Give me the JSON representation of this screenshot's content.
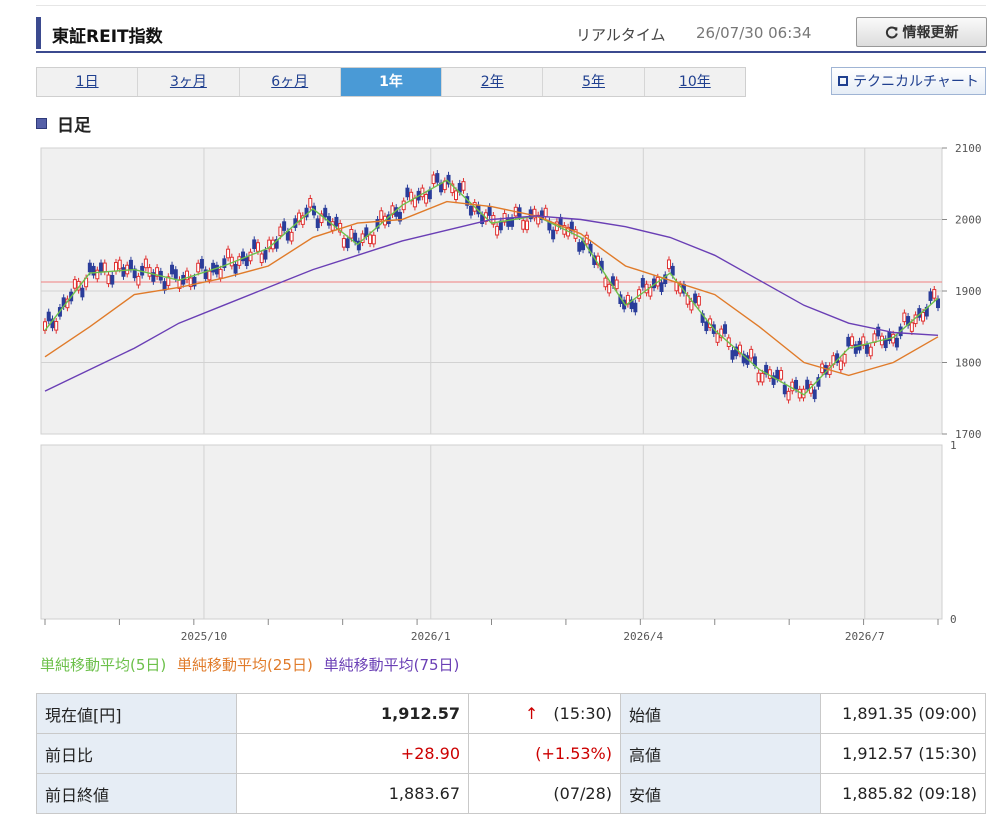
{
  "header": {
    "title": "東証REIT指数",
    "realtime_label": "リアルタイム",
    "timestamp": "26/07/30 06:34",
    "refresh_label": "情報更新"
  },
  "tabs": [
    {
      "label": "1日",
      "active": false
    },
    {
      "label": "3ヶ月",
      "active": false
    },
    {
      "label": "6ヶ月",
      "active": false
    },
    {
      "label": "1年",
      "active": true
    },
    {
      "label": "2年",
      "active": false
    },
    {
      "label": "5年",
      "active": false
    },
    {
      "label": "10年",
      "active": false
    }
  ],
  "technical_chart_label": "テクニカルチャート",
  "section_label": "日足",
  "legend": [
    {
      "label": "単純移動平均(5日)",
      "color": "#6cc04a"
    },
    {
      "label": "単純移動平均(25日)",
      "color": "#e07b2a"
    },
    {
      "label": "単純移動平均(75日)",
      "color": "#6a3fb5"
    }
  ],
  "chart_data": {
    "type": "line",
    "x_ticks": [
      "2025/10",
      "2026/1",
      "2026/4",
      "2026/7"
    ],
    "y_ticks": [
      "2100",
      "2000",
      "1900",
      "1800",
      "1700"
    ],
    "ylim": [
      1700,
      2100
    ],
    "volume_ticks": [
      "1",
      "0"
    ],
    "reference_line": 1912.57,
    "series": [
      {
        "name": "単純移動平均(5日)",
        "color": "#6cc04a",
        "x": [
          0,
          0.05,
          0.1,
          0.15,
          0.2,
          0.25,
          0.3,
          0.35,
          0.4,
          0.45,
          0.5,
          0.55,
          0.6,
          0.65,
          0.7,
          0.75,
          0.8,
          0.85,
          0.9,
          0.95,
          1.0
        ],
        "y": [
          1845,
          1925,
          1930,
          1915,
          1935,
          1960,
          2015,
          1965,
          2020,
          2055,
          1995,
          2005,
          1975,
          1880,
          1925,
          1845,
          1790,
          1755,
          1820,
          1835,
          1890
        ]
      },
      {
        "name": "単純移動平均(25日)",
        "color": "#e07b2a",
        "x": [
          0,
          0.05,
          0.1,
          0.15,
          0.2,
          0.25,
          0.3,
          0.35,
          0.4,
          0.45,
          0.5,
          0.55,
          0.6,
          0.65,
          0.7,
          0.75,
          0.8,
          0.85,
          0.9,
          0.95,
          1.0
        ],
        "y": [
          1808,
          1850,
          1895,
          1905,
          1918,
          1935,
          1975,
          1995,
          2000,
          2025,
          2018,
          2005,
          1980,
          1935,
          1915,
          1895,
          1850,
          1800,
          1782,
          1800,
          1836
        ]
      },
      {
        "name": "単純移動平均(75日)",
        "color": "#6a3fb5",
        "x": [
          0,
          0.05,
          0.1,
          0.15,
          0.2,
          0.25,
          0.3,
          0.35,
          0.4,
          0.45,
          0.5,
          0.55,
          0.6,
          0.65,
          0.7,
          0.75,
          0.8,
          0.85,
          0.9,
          0.95,
          1.0
        ],
        "y": [
          1760,
          1790,
          1820,
          1855,
          1880,
          1905,
          1930,
          1950,
          1970,
          1985,
          2000,
          2005,
          2000,
          1990,
          1975,
          1950,
          1915,
          1880,
          1855,
          1842,
          1838
        ]
      }
    ]
  },
  "quote_table": {
    "rows": [
      {
        "label1": "現在値[円]",
        "value1": "1,912.57",
        "arrow": "↑",
        "note1": "(15:30)",
        "label2": "始値",
        "value2": "1,891.35 (09:00)"
      },
      {
        "label1": "前日比",
        "value1": "+28.90",
        "arrow": "",
        "note1": "(+1.53%)",
        "label2": "高値",
        "value2": "1,912.57 (15:30)"
      },
      {
        "label1": "前日終値",
        "value1": "1,883.67",
        "arrow": "",
        "note1": "(07/28)",
        "label2": "安値",
        "value2": "1,885.82 (09:18)"
      }
    ],
    "up_color": "#cc0000"
  }
}
